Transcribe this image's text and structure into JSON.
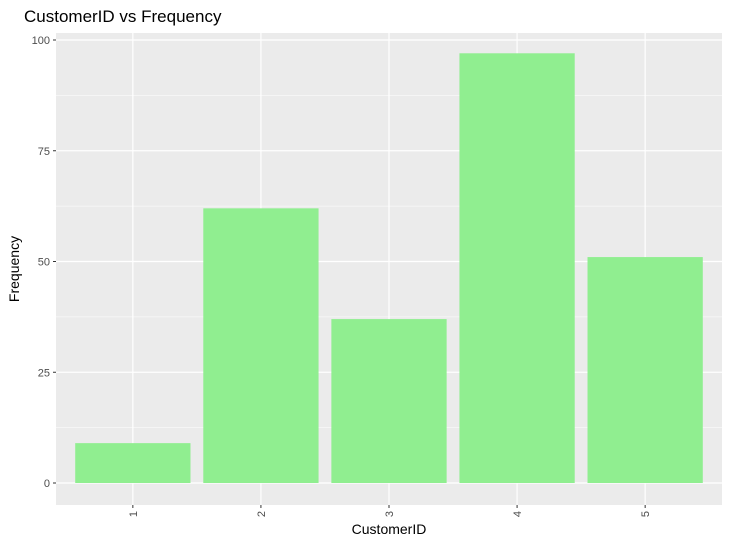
{
  "chart_data": {
    "type": "bar",
    "title": "CustomerID vs Frequency",
    "xlabel": "CustomerID",
    "ylabel": "Frequency",
    "categories": [
      "1",
      "2",
      "3",
      "4",
      "5"
    ],
    "values": [
      9,
      62,
      37,
      97,
      51
    ],
    "ylim": [
      0,
      100
    ],
    "yticks": [
      0,
      25,
      50,
      75,
      100
    ],
    "ytick_labels": [
      "0",
      "25",
      "50",
      "75",
      "100"
    ],
    "x_tick_label_rotation": "vertical",
    "grid": true,
    "legend": "none",
    "colors": {
      "bar_fill": "#90EE90",
      "panel_background": "#EBEBEB",
      "grid_line": "#FFFFFF",
      "tick_text": "#4D4D4D",
      "tick_mark": "#333333"
    }
  }
}
